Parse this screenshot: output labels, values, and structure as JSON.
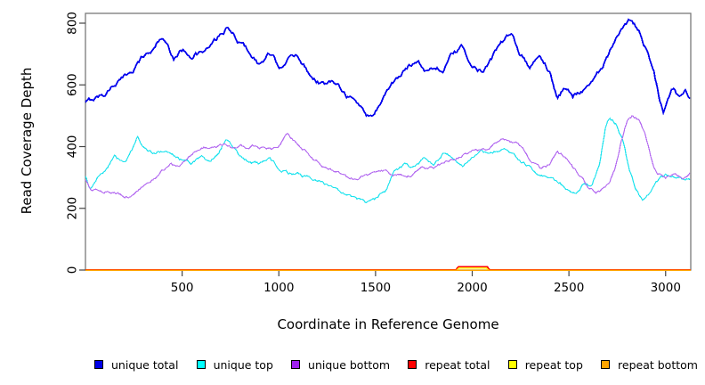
{
  "chart_data": {
    "type": "line",
    "title": "",
    "xlabel": "Coordinate in Reference Genome",
    "ylabel": "Read Coverage Depth",
    "xlim": [
      0,
      3130
    ],
    "ylim": [
      0,
      800
    ],
    "xticks": [
      500,
      1000,
      1500,
      2000,
      2500,
      3000
    ],
    "yticks": [
      0,
      200,
      400,
      600,
      800
    ],
    "grid": false,
    "legend_position": "bottom",
    "frame_color": "#787878",
    "series": [
      {
        "name": "unique total",
        "color": "#0000EE",
        "lw": 1.8,
        "jitter": 13,
        "points": [
          [
            0,
            540
          ],
          [
            50,
            558
          ],
          [
            100,
            570
          ],
          [
            150,
            605
          ],
          [
            200,
            622
          ],
          [
            250,
            655
          ],
          [
            300,
            695
          ],
          [
            350,
            712
          ],
          [
            385,
            752
          ],
          [
            420,
            735
          ],
          [
            455,
            690
          ],
          [
            500,
            712
          ],
          [
            550,
            700
          ],
          [
            600,
            702
          ],
          [
            650,
            726
          ],
          [
            700,
            762
          ],
          [
            735,
            782
          ],
          [
            780,
            748
          ],
          [
            820,
            725
          ],
          [
            860,
            700
          ],
          [
            900,
            665
          ],
          [
            950,
            700
          ],
          [
            1000,
            660
          ],
          [
            1050,
            685
          ],
          [
            1100,
            695
          ],
          [
            1150,
            645
          ],
          [
            1200,
            615
          ],
          [
            1250,
            600
          ],
          [
            1300,
            615
          ],
          [
            1350,
            570
          ],
          [
            1400,
            545
          ],
          [
            1455,
            505
          ],
          [
            1490,
            500
          ],
          [
            1530,
            550
          ],
          [
            1580,
            602
          ],
          [
            1630,
            632
          ],
          [
            1680,
            662
          ],
          [
            1720,
            680
          ],
          [
            1760,
            650
          ],
          [
            1800,
            655
          ],
          [
            1850,
            650
          ],
          [
            1900,
            700
          ],
          [
            1950,
            718
          ],
          [
            2000,
            655
          ],
          [
            2050,
            648
          ],
          [
            2100,
            690
          ],
          [
            2150,
            735
          ],
          [
            2200,
            760
          ],
          [
            2250,
            698
          ],
          [
            2300,
            660
          ],
          [
            2350,
            692
          ],
          [
            2400,
            645
          ],
          [
            2440,
            555
          ],
          [
            2480,
            592
          ],
          [
            2520,
            565
          ],
          [
            2570,
            588
          ],
          [
            2620,
            608
          ],
          [
            2670,
            655
          ],
          [
            2720,
            715
          ],
          [
            2770,
            768
          ],
          [
            2820,
            810
          ],
          [
            2860,
            782
          ],
          [
            2900,
            718
          ],
          [
            2940,
            655
          ],
          [
            2970,
            545
          ],
          [
            2990,
            508
          ],
          [
            3010,
            555
          ],
          [
            3040,
            590
          ],
          [
            3070,
            552
          ],
          [
            3100,
            574
          ],
          [
            3130,
            542
          ]
        ]
      },
      {
        "name": "unique top",
        "color": "#1EE3EE",
        "lw": 1.2,
        "jitter": 9,
        "points": [
          [
            0,
            300
          ],
          [
            25,
            260
          ],
          [
            60,
            300
          ],
          [
            100,
            325
          ],
          [
            150,
            365
          ],
          [
            200,
            345
          ],
          [
            240,
            385
          ],
          [
            270,
            430
          ],
          [
            300,
            400
          ],
          [
            350,
            380
          ],
          [
            400,
            390
          ],
          [
            450,
            370
          ],
          [
            500,
            355
          ],
          [
            550,
            350
          ],
          [
            600,
            370
          ],
          [
            650,
            350
          ],
          [
            700,
            395
          ],
          [
            730,
            430
          ],
          [
            770,
            400
          ],
          [
            800,
            375
          ],
          [
            850,
            350
          ],
          [
            900,
            345
          ],
          [
            950,
            360
          ],
          [
            1000,
            335
          ],
          [
            1050,
            315
          ],
          [
            1100,
            310
          ],
          [
            1150,
            300
          ],
          [
            1200,
            290
          ],
          [
            1250,
            270
          ],
          [
            1300,
            255
          ],
          [
            1350,
            240
          ],
          [
            1400,
            228
          ],
          [
            1450,
            222
          ],
          [
            1500,
            230
          ],
          [
            1550,
            255
          ],
          [
            1600,
            320
          ],
          [
            1650,
            340
          ],
          [
            1700,
            330
          ],
          [
            1750,
            360
          ],
          [
            1800,
            345
          ],
          [
            1850,
            380
          ],
          [
            1900,
            360
          ],
          [
            1950,
            340
          ],
          [
            2000,
            360
          ],
          [
            2050,
            385
          ],
          [
            2100,
            375
          ],
          [
            2150,
            390
          ],
          [
            2200,
            380
          ],
          [
            2250,
            350
          ],
          [
            2300,
            330
          ],
          [
            2350,
            305
          ],
          [
            2400,
            290
          ],
          [
            2450,
            285
          ],
          [
            2500,
            255
          ],
          [
            2540,
            250
          ],
          [
            2580,
            280
          ],
          [
            2620,
            270
          ],
          [
            2660,
            350
          ],
          [
            2690,
            470
          ],
          [
            2710,
            500
          ],
          [
            2740,
            480
          ],
          [
            2780,
            420
          ],
          [
            2810,
            330
          ],
          [
            2840,
            275
          ],
          [
            2880,
            225
          ],
          [
            2920,
            250
          ],
          [
            2950,
            290
          ],
          [
            3000,
            310
          ],
          [
            3050,
            300
          ],
          [
            3100,
            288
          ],
          [
            3130,
            292
          ]
        ]
      },
      {
        "name": "unique bottom",
        "color": "#B46CF0",
        "lw": 1.2,
        "jitter": 8,
        "points": [
          [
            0,
            290
          ],
          [
            30,
            255
          ],
          [
            80,
            260
          ],
          [
            130,
            252
          ],
          [
            180,
            245
          ],
          [
            220,
            240
          ],
          [
            260,
            262
          ],
          [
            300,
            272
          ],
          [
            350,
            292
          ],
          [
            400,
            322
          ],
          [
            440,
            342
          ],
          [
            480,
            332
          ],
          [
            520,
            352
          ],
          [
            560,
            380
          ],
          [
            600,
            392
          ],
          [
            640,
            402
          ],
          [
            680,
            398
          ],
          [
            720,
            408
          ],
          [
            760,
            398
          ],
          [
            800,
            406
          ],
          [
            840,
            392
          ],
          [
            880,
            400
          ],
          [
            920,
            394
          ],
          [
            960,
            388
          ],
          [
            1000,
            405
          ],
          [
            1040,
            438
          ],
          [
            1070,
            420
          ],
          [
            1100,
            410
          ],
          [
            1150,
            380
          ],
          [
            1200,
            352
          ],
          [
            1250,
            332
          ],
          [
            1300,
            320
          ],
          [
            1350,
            302
          ],
          [
            1400,
            295
          ],
          [
            1450,
            305
          ],
          [
            1500,
            312
          ],
          [
            1550,
            322
          ],
          [
            1600,
            310
          ],
          [
            1650,
            302
          ],
          [
            1700,
            312
          ],
          [
            1750,
            330
          ],
          [
            1800,
            332
          ],
          [
            1850,
            346
          ],
          [
            1900,
            356
          ],
          [
            1950,
            372
          ],
          [
            2000,
            390
          ],
          [
            2050,
            386
          ],
          [
            2100,
            400
          ],
          [
            2150,
            430
          ],
          [
            2200,
            420
          ],
          [
            2250,
            400
          ],
          [
            2300,
            360
          ],
          [
            2350,
            332
          ],
          [
            2400,
            342
          ],
          [
            2440,
            375
          ],
          [
            2480,
            365
          ],
          [
            2520,
            330
          ],
          [
            2560,
            300
          ],
          [
            2600,
            272
          ],
          [
            2640,
            250
          ],
          [
            2680,
            262
          ],
          [
            2710,
            280
          ],
          [
            2740,
            330
          ],
          [
            2770,
            420
          ],
          [
            2800,
            480
          ],
          [
            2830,
            500
          ],
          [
            2860,
            488
          ],
          [
            2880,
            460
          ],
          [
            2900,
            425
          ],
          [
            2920,
            372
          ],
          [
            2940,
            330
          ],
          [
            2960,
            305
          ],
          [
            3000,
            298
          ],
          [
            3040,
            305
          ],
          [
            3070,
            300
          ],
          [
            3100,
            298
          ],
          [
            3130,
            315
          ]
        ]
      },
      {
        "name": "repeat total",
        "color": "#FF0000",
        "lw": 1.8,
        "jitter": 0,
        "points": [
          [
            0,
            0
          ],
          [
            1915,
            0
          ],
          [
            1928,
            10
          ],
          [
            2078,
            10
          ],
          [
            2090,
            0
          ],
          [
            3130,
            0
          ]
        ]
      },
      {
        "name": "repeat top",
        "color": "#FFFF00",
        "lw": 1.5,
        "jitter": 0,
        "points": [
          [
            0,
            0
          ],
          [
            1920,
            0
          ],
          [
            1932,
            7
          ],
          [
            2072,
            7
          ],
          [
            2084,
            0
          ],
          [
            3130,
            0
          ]
        ]
      },
      {
        "name": "repeat bottom",
        "color": "#FFA500",
        "lw": 1.5,
        "jitter": 0,
        "points": [
          [
            0,
            0
          ],
          [
            3130,
            0
          ]
        ]
      }
    ]
  },
  "legend": {
    "items": [
      {
        "label": "unique total",
        "color": "#0000E8"
      },
      {
        "label": "unique top",
        "color": "#00FFFF"
      },
      {
        "label": "unique bottom",
        "color": "#A020F0"
      },
      {
        "label": "repeat total",
        "color": "#FF0000"
      },
      {
        "label": "repeat top",
        "color": "#FFFF00"
      },
      {
        "label": "repeat bottom",
        "color": "#FFA500"
      }
    ]
  }
}
